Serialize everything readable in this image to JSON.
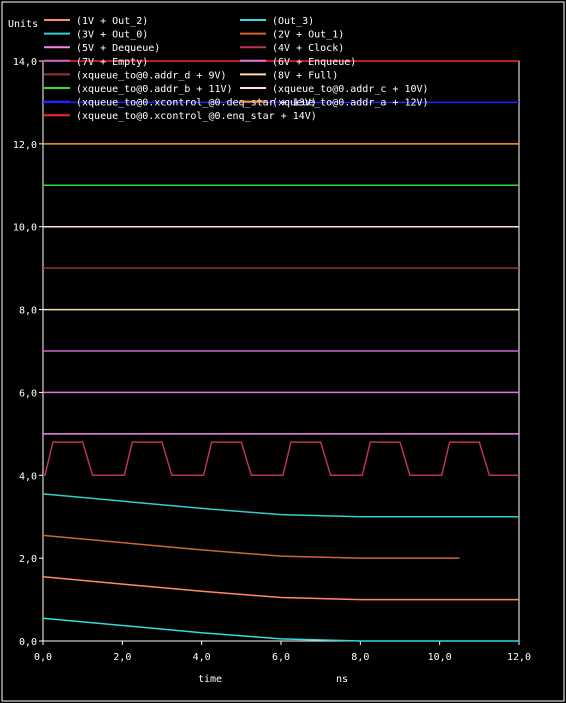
{
  "chart_data": {
    "type": "line",
    "ylabel": "Units",
    "xlabel": "time",
    "xunit": "ns",
    "xlim": [
      0,
      12
    ],
    "ylim": [
      0,
      14
    ],
    "xticks": [
      "0,0",
      "2,0",
      "4,0",
      "6,0",
      "8,0",
      "10,0",
      "12,0"
    ],
    "yticks": [
      "0,0",
      "2,0",
      "4,0",
      "6,0",
      "8,0",
      "10,0",
      "12,0",
      "14,0"
    ],
    "grid": false,
    "legend_position": "top",
    "series": [
      {
        "name": "(1V + Out_2)",
        "color": "#ff8866",
        "x": [
          0,
          4,
          6,
          8,
          12
        ],
        "y": [
          1.55,
          1.2,
          1.05,
          1.0,
          1.0
        ]
      },
      {
        "name": "(Out_3)",
        "color": "#33dddd",
        "x": [
          0,
          4,
          6,
          8,
          12
        ],
        "y": [
          0.55,
          0.2,
          0.05,
          0.0,
          0.0
        ]
      },
      {
        "name": "(3V + Out_0)",
        "color": "#33cccc",
        "x": [
          0,
          4,
          6,
          8,
          12
        ],
        "y": [
          3.55,
          3.2,
          3.05,
          3.0,
          3.0
        ]
      },
      {
        "name": "(2V + Out_1)",
        "color": "#cc6633",
        "x": [
          0,
          4,
          6,
          8,
          10.5
        ],
        "y": [
          2.55,
          2.2,
          2.05,
          2.0,
          2.0
        ]
      },
      {
        "name": "(5V + Dequeue)",
        "color": "#ee88ee",
        "x": [
          0,
          12
        ],
        "y": [
          5.0,
          5.0
        ]
      },
      {
        "name": "(4V + Clock)",
        "color": "#bb3355",
        "clock": {
          "low": 4.0,
          "high": 4.8,
          "period": 2.0,
          "rise_start": 0.05,
          "rise_end": 0.25,
          "fall_start": 1.0,
          "fall_end": 1.25,
          "x_end": 12
        }
      },
      {
        "name": "(7V + Empty)",
        "color": "#cc66cc",
        "x": [
          0,
          12
        ],
        "y": [
          7.0,
          7.0
        ]
      },
      {
        "name": "(6V + Enqueue)",
        "color": "#dd77dd",
        "x": [
          0,
          12
        ],
        "y": [
          6.0,
          6.0
        ]
      },
      {
        "name": "(xqueue_to@0.addr_d + 9V)",
        "color": "#993333",
        "x": [
          0,
          12
        ],
        "y": [
          9.0,
          9.0
        ]
      },
      {
        "name": "(8V + Full)",
        "color": "#ffddaa",
        "x": [
          0,
          12
        ],
        "y": [
          8.0,
          8.0
        ]
      },
      {
        "name": "(xqueue_to@0.addr_b + 11V)",
        "color": "#33dd33",
        "x": [
          0,
          12
        ],
        "y": [
          11.0,
          11.0
        ]
      },
      {
        "name": "(xqueue_to@0.addr_c + 10V)",
        "color": "#ffdddd",
        "x": [
          0,
          12
        ],
        "y": [
          10.0,
          10.0
        ]
      },
      {
        "name": "(xqueue_to@0.xcontrol_@0.deq_star + 13V)",
        "color": "#2222ff",
        "x": [
          0,
          12
        ],
        "y": [
          13.0,
          13.0
        ]
      },
      {
        "name": "(xqueue_to@0.addr_a + 12V)",
        "color": "#ff9933",
        "x": [
          0,
          12
        ],
        "y": [
          12.0,
          12.0
        ]
      },
      {
        "name": "(xqueue_to@0.xcontrol_@0.enq_star + 14V)",
        "color": "#ff2222",
        "x": [
          0,
          12
        ],
        "y": [
          14.0,
          14.0
        ]
      }
    ]
  }
}
